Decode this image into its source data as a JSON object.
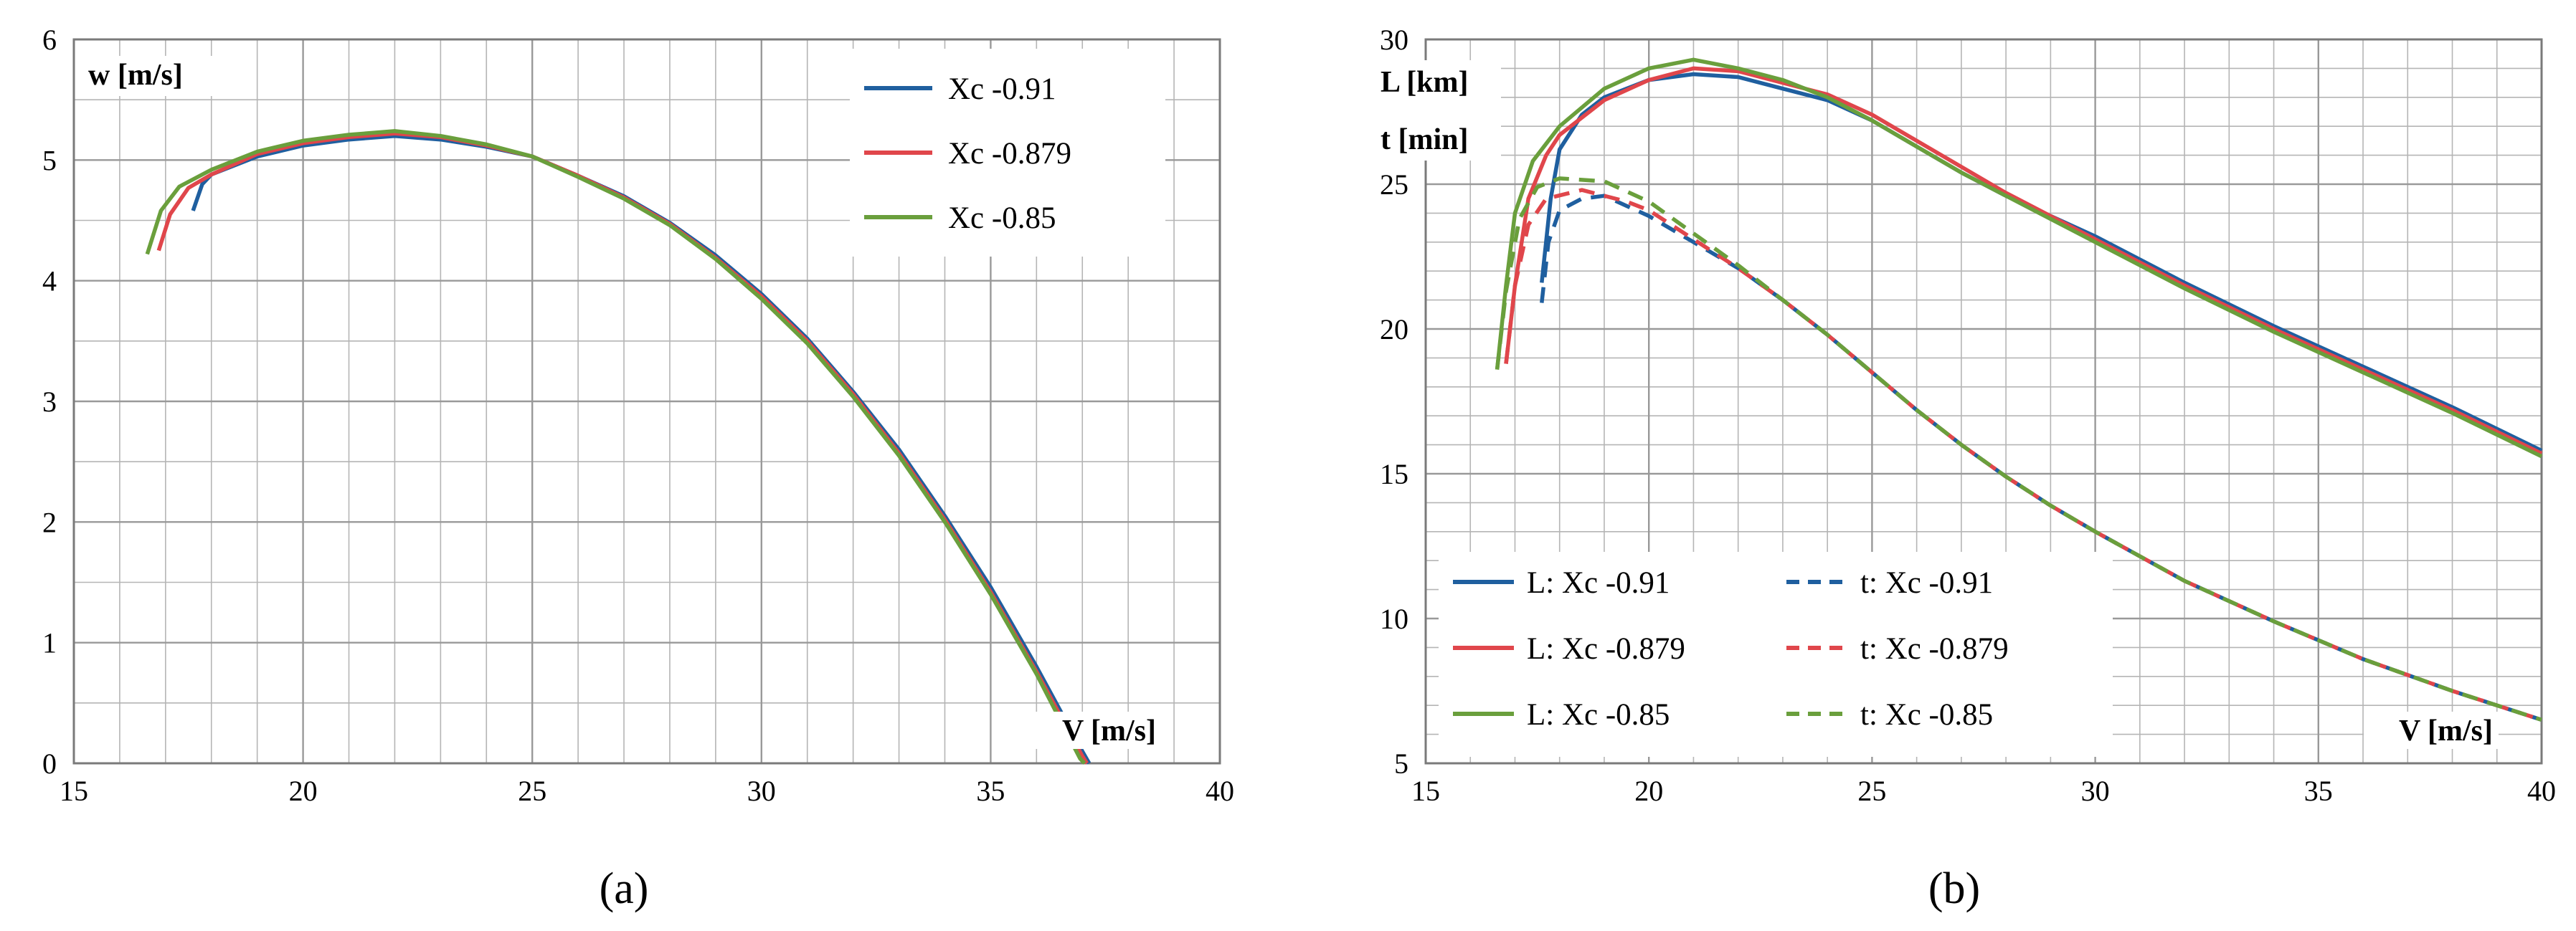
{
  "colors": {
    "blue": "#1f5f9f",
    "red": "#e0464b",
    "green": "#6a9f3c",
    "grid": "#b5b5b5",
    "axis": "#7a7a7a"
  },
  "chart_data": [
    {
      "panel_label": "(a)",
      "type": "line",
      "xlabel": "V [m/s]",
      "ylabel": "w [m/s]",
      "xlim": [
        15,
        40
      ],
      "ylim": [
        0,
        6
      ],
      "x_ticks": [
        15,
        20,
        25,
        30,
        35,
        40
      ],
      "y_ticks": [
        0,
        1,
        2,
        3,
        4,
        5,
        6
      ],
      "x_minor_step": 1,
      "y_minor_step": 0.5,
      "legend_position": "top-right",
      "series": [
        {
          "name": "Xc  -0.91",
          "color": "#1f5f9f",
          "dash": false,
          "points": [
            [
              17.6,
              4.58
            ],
            [
              17.8,
              4.8
            ],
            [
              18,
              4.88
            ],
            [
              19,
              5.03
            ],
            [
              20,
              5.12
            ],
            [
              21,
              5.17
            ],
            [
              22,
              5.2
            ],
            [
              23,
              5.17
            ],
            [
              24,
              5.11
            ],
            [
              25,
              5.03
            ],
            [
              26,
              4.87
            ],
            [
              27,
              4.7
            ],
            [
              28,
              4.48
            ],
            [
              29,
              4.21
            ],
            [
              30,
              3.89
            ],
            [
              31,
              3.52
            ],
            [
              32,
              3.08
            ],
            [
              33,
              2.6
            ],
            [
              34,
              2.05
            ],
            [
              35,
              1.46
            ],
            [
              36,
              0.8
            ],
            [
              37,
              0.1
            ],
            [
              37.15,
              0
            ]
          ]
        },
        {
          "name": "Xc  -0.879",
          "color": "#e0464b",
          "dash": false,
          "points": [
            [
              16.85,
              4.25
            ],
            [
              17.1,
              4.55
            ],
            [
              17.5,
              4.77
            ],
            [
              18,
              4.88
            ],
            [
              19,
              5.05
            ],
            [
              20,
              5.14
            ],
            [
              21,
              5.19
            ],
            [
              22,
              5.22
            ],
            [
              23,
              5.19
            ],
            [
              24,
              5.12
            ],
            [
              25,
              5.03
            ],
            [
              26,
              4.87
            ],
            [
              27,
              4.69
            ],
            [
              28,
              4.47
            ],
            [
              29,
              4.19
            ],
            [
              30,
              3.87
            ],
            [
              31,
              3.5
            ],
            [
              32,
              3.06
            ],
            [
              33,
              2.57
            ],
            [
              34,
              2.02
            ],
            [
              35,
              1.42
            ],
            [
              36,
              0.76
            ],
            [
              37,
              0.06
            ],
            [
              37.1,
              0
            ]
          ]
        },
        {
          "name": "Xc  -0.85",
          "color": "#6a9f3c",
          "dash": false,
          "points": [
            [
              16.6,
              4.22
            ],
            [
              16.9,
              4.58
            ],
            [
              17.3,
              4.78
            ],
            [
              18,
              4.92
            ],
            [
              19,
              5.07
            ],
            [
              20,
              5.16
            ],
            [
              21,
              5.21
            ],
            [
              22,
              5.24
            ],
            [
              23,
              5.2
            ],
            [
              24,
              5.13
            ],
            [
              25,
              5.03
            ],
            [
              26,
              4.86
            ],
            [
              27,
              4.68
            ],
            [
              28,
              4.46
            ],
            [
              29,
              4.18
            ],
            [
              30,
              3.85
            ],
            [
              31,
              3.48
            ],
            [
              32,
              3.04
            ],
            [
              33,
              2.55
            ],
            [
              34,
              2.0
            ],
            [
              35,
              1.4
            ],
            [
              36,
              0.74
            ],
            [
              36.95,
              0.04
            ],
            [
              37.05,
              0
            ]
          ]
        }
      ]
    },
    {
      "panel_label": "(b)",
      "type": "line",
      "xlabel": "V [m/s]",
      "ylabel": [
        "L [km]",
        "t [min]"
      ],
      "xlim": [
        15,
        40
      ],
      "ylim": [
        5,
        30
      ],
      "x_ticks": [
        15,
        20,
        25,
        30,
        35,
        40
      ],
      "y_ticks": [
        5,
        10,
        15,
        20,
        25,
        30
      ],
      "x_minor_step": 1,
      "y_minor_step": 1,
      "legend_position": "bottom-left",
      "series": [
        {
          "name": "L: Xc -0.91",
          "color": "#1f5f9f",
          "dash": false,
          "points": [
            [
              17.6,
              21.6
            ],
            [
              17.8,
              24.5
            ],
            [
              18,
              26.2
            ],
            [
              18.5,
              27.4
            ],
            [
              19,
              28.0
            ],
            [
              20,
              28.6
            ],
            [
              21,
              28.8
            ],
            [
              22,
              28.7
            ],
            [
              23,
              28.3
            ],
            [
              24,
              27.9
            ],
            [
              25,
              27.2
            ],
            [
              26,
              26.3
            ],
            [
              27,
              25.4
            ],
            [
              28,
              24.6
            ],
            [
              29,
              23.9
            ],
            [
              30,
              23.2
            ],
            [
              32,
              21.6
            ],
            [
              34,
              20.1
            ],
            [
              36,
              18.7
            ],
            [
              38,
              17.3
            ],
            [
              40,
              15.8
            ]
          ]
        },
        {
          "name": "L: Xc -0.879",
          "color": "#e0464b",
          "dash": false,
          "points": [
            [
              16.8,
              18.8
            ],
            [
              17,
              21.5
            ],
            [
              17.3,
              24.5
            ],
            [
              17.7,
              26.0
            ],
            [
              18,
              26.7
            ],
            [
              19,
              27.9
            ],
            [
              20,
              28.6
            ],
            [
              21,
              29.0
            ],
            [
              22,
              28.9
            ],
            [
              23,
              28.5
            ],
            [
              24,
              28.1
            ],
            [
              25,
              27.4
            ],
            [
              26,
              26.5
            ],
            [
              27,
              25.6
            ],
            [
              28,
              24.7
            ],
            [
              29,
              23.9
            ],
            [
              30,
              23.1
            ],
            [
              32,
              21.5
            ],
            [
              34,
              20.0
            ],
            [
              36,
              18.6
            ],
            [
              38,
              17.2
            ],
            [
              40,
              15.7
            ]
          ]
        },
        {
          "name": "L: Xc -0.85",
          "color": "#6a9f3c",
          "dash": false,
          "points": [
            [
              16.6,
              18.6
            ],
            [
              16.8,
              21.5
            ],
            [
              17,
              24.0
            ],
            [
              17.4,
              25.8
            ],
            [
              18,
              27.0
            ],
            [
              19,
              28.3
            ],
            [
              20,
              29.0
            ],
            [
              21,
              29.3
            ],
            [
              22,
              29.0
            ],
            [
              23,
              28.6
            ],
            [
              24,
              28.0
            ],
            [
              25,
              27.2
            ],
            [
              26,
              26.3
            ],
            [
              27,
              25.4
            ],
            [
              28,
              24.6
            ],
            [
              29,
              23.8
            ],
            [
              30,
              23.0
            ],
            [
              32,
              21.4
            ],
            [
              34,
              19.9
            ],
            [
              36,
              18.5
            ],
            [
              38,
              17.1
            ],
            [
              40,
              15.6
            ]
          ]
        },
        {
          "name": "t: Xc -0.91",
          "color": "#1f5f9f",
          "dash": true,
          "points": [
            [
              17.6,
              20.9
            ],
            [
              17.75,
              23.0
            ],
            [
              18,
              24.1
            ],
            [
              18.5,
              24.5
            ],
            [
              19,
              24.6
            ],
            [
              20,
              23.9
            ],
            [
              21,
              23.0
            ],
            [
              22,
              22.1
            ],
            [
              23,
              21.0
            ],
            [
              24,
              19.8
            ],
            [
              25,
              18.5
            ],
            [
              26,
              17.2
            ],
            [
              27,
              16.0
            ],
            [
              28,
              14.9
            ],
            [
              29,
              13.9
            ],
            [
              30,
              13.0
            ],
            [
              32,
              11.3
            ],
            [
              34,
              9.9
            ],
            [
              36,
              8.6
            ],
            [
              38,
              7.5
            ],
            [
              40,
              6.5
            ]
          ]
        },
        {
          "name": "t: Xc -0.879",
          "color": "#e0464b",
          "dash": true,
          "points": [
            [
              16.8,
              18.8
            ],
            [
              17,
              21.5
            ],
            [
              17.3,
              23.6
            ],
            [
              17.7,
              24.5
            ],
            [
              18.5,
              24.8
            ],
            [
              19.5,
              24.4
            ],
            [
              20,
              24.1
            ],
            [
              21,
              23.1
            ],
            [
              22,
              22.1
            ],
            [
              23,
              21.0
            ],
            [
              24,
              19.8
            ],
            [
              25,
              18.5
            ],
            [
              26,
              17.2
            ],
            [
              27,
              16.0
            ],
            [
              28,
              14.9
            ],
            [
              29,
              13.9
            ],
            [
              30,
              13.0
            ],
            [
              32,
              11.3
            ],
            [
              34,
              9.9
            ],
            [
              36,
              8.6
            ],
            [
              38,
              7.5
            ],
            [
              40,
              6.5
            ]
          ]
        },
        {
          "name": "t: Xc -0.85",
          "color": "#6a9f3c",
          "dash": true,
          "points": [
            [
              16.6,
              18.6
            ],
            [
              16.8,
              21.3
            ],
            [
              17.1,
              23.8
            ],
            [
              17.5,
              24.9
            ],
            [
              18,
              25.2
            ],
            [
              19,
              25.1
            ],
            [
              20,
              24.4
            ],
            [
              21,
              23.3
            ],
            [
              22,
              22.2
            ],
            [
              23,
              21.0
            ],
            [
              24,
              19.8
            ],
            [
              25,
              18.5
            ],
            [
              26,
              17.2
            ],
            [
              27,
              16.0
            ],
            [
              28,
              14.9
            ],
            [
              29,
              13.9
            ],
            [
              30,
              13.0
            ],
            [
              32,
              11.3
            ],
            [
              34,
              9.9
            ],
            [
              36,
              8.6
            ],
            [
              38,
              7.5
            ],
            [
              40,
              6.5
            ]
          ]
        }
      ]
    }
  ]
}
